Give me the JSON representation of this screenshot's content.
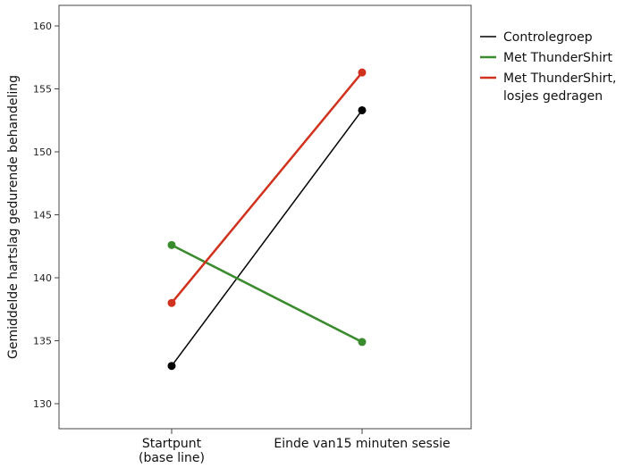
{
  "chart_data": {
    "type": "line",
    "title": "",
    "xlabel": "",
    "ylabel": "Gemiddelde hartslag gedurende behandeling",
    "categories": [
      [
        "Startpunt",
        "(base line)"
      ],
      [
        "Einde van15 minuten sessie"
      ]
    ],
    "ylim": [
      128,
      162
    ],
    "yticks": [
      130,
      135,
      140,
      145,
      150,
      155,
      160
    ],
    "grid": false,
    "legend_position": "right",
    "series": [
      {
        "name": [
          "Controlegroep"
        ],
        "color": "#000000",
        "values": [
          133.0,
          153.3
        ]
      },
      {
        "name": [
          "Met ThunderShirt"
        ],
        "color": "#3a8a2e",
        "values": [
          142.6,
          134.9
        ]
      },
      {
        "name": [
          "Met ThunderShirt,",
          "losjes gedragen"
        ],
        "color": "#d0321e",
        "values": [
          138.0,
          156.3
        ]
      }
    ]
  }
}
